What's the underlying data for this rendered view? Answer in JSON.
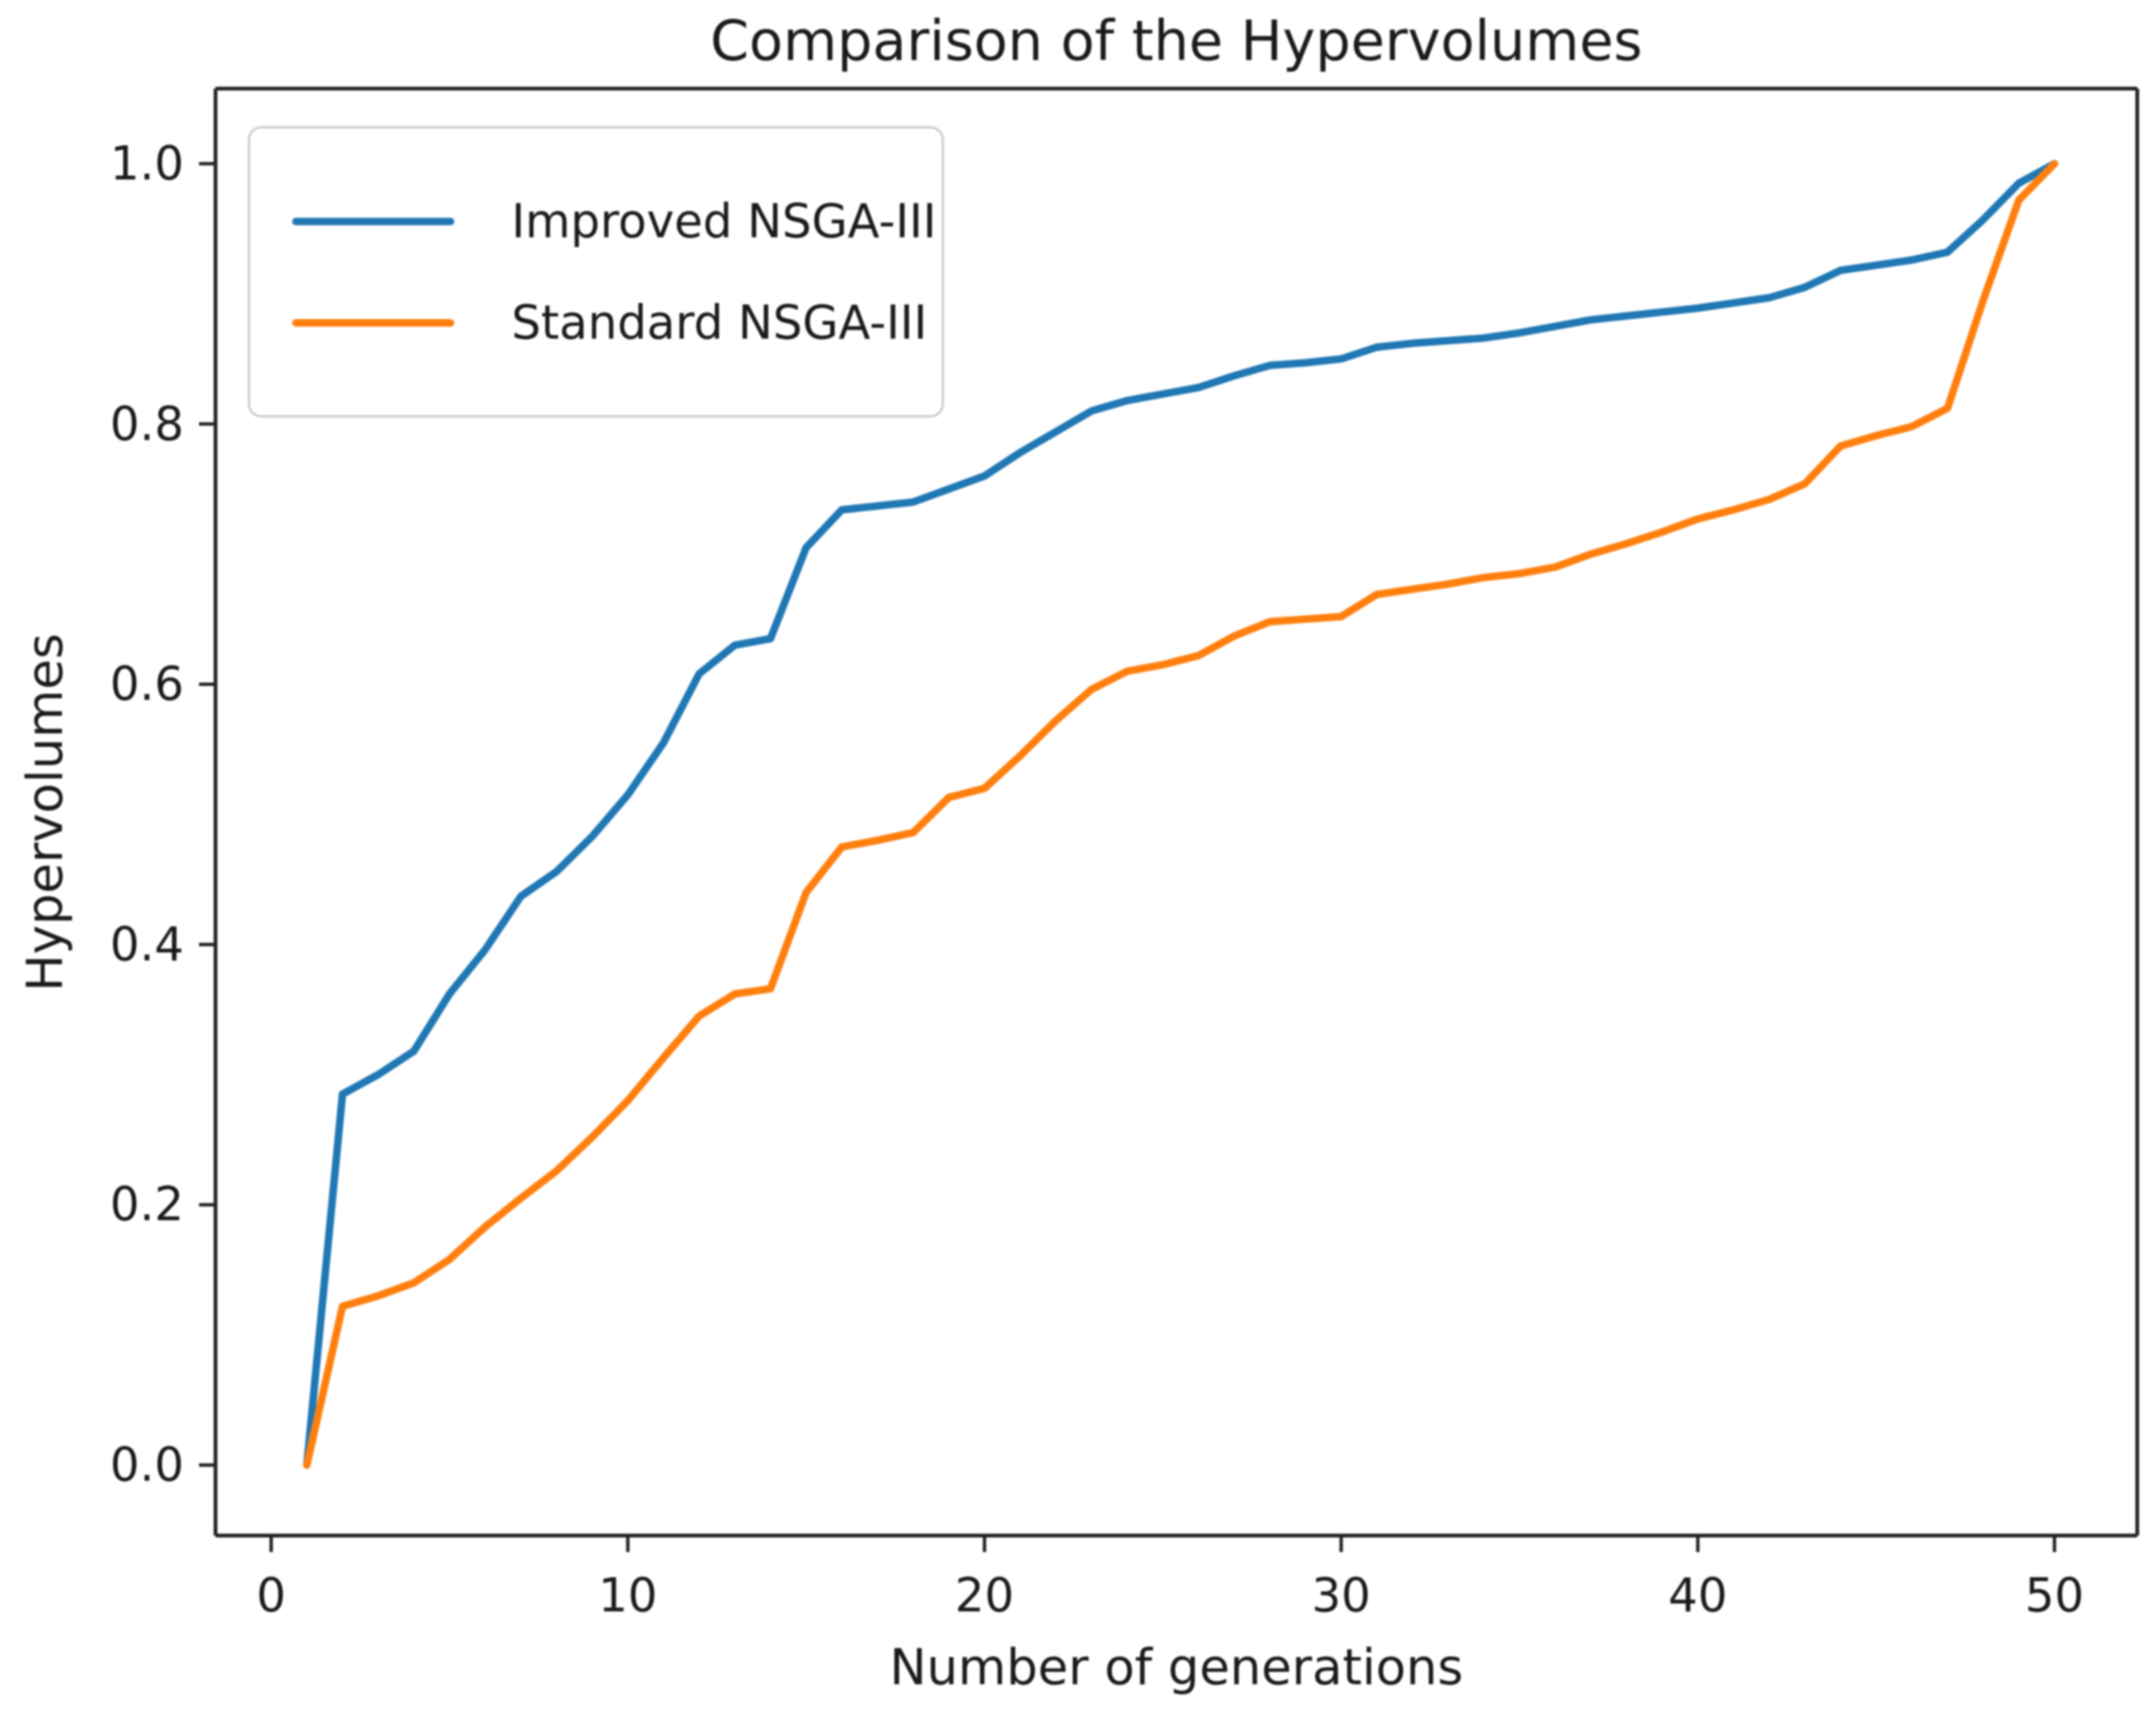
{
  "chart_data": {
    "type": "line",
    "title": "Comparison of the Hypervolumes",
    "xlabel": "Number of generations",
    "ylabel": "Hypervolumes",
    "xlim": [
      -1.56,
      52.32
    ],
    "ylim": [
      -0.0542,
      1.0577
    ],
    "x_ticks": [
      0,
      10,
      20,
      30,
      40,
      50
    ],
    "x_tick_labels": [
      "0",
      "10",
      "20",
      "30",
      "40",
      "50"
    ],
    "y_ticks": [
      0.0,
      0.2,
      0.4,
      0.6,
      0.8,
      1.0
    ],
    "y_tick_labels": [
      "0.0",
      "0.2",
      "0.4",
      "0.6",
      "0.8",
      "1.0"
    ],
    "grid": false,
    "legend_position": "upper left",
    "x": [
      1,
      2,
      3,
      4,
      5,
      6,
      7,
      8,
      9,
      10,
      11,
      12,
      13,
      14,
      15,
      16,
      17,
      18,
      19,
      20,
      21,
      22,
      23,
      24,
      25,
      26,
      27,
      28,
      29,
      30,
      31,
      32,
      33,
      34,
      35,
      36,
      37,
      38,
      39,
      40,
      41,
      42,
      43,
      44,
      45,
      46,
      47,
      48,
      49,
      50
    ],
    "series": [
      {
        "name": "Improved NSGA-III",
        "color": "#1f77b4",
        "values": [
          0.0,
          0.285,
          0.3,
          0.318,
          0.362,
          0.396,
          0.437,
          0.456,
          0.483,
          0.515,
          0.555,
          0.608,
          0.63,
          0.635,
          0.705,
          0.734,
          0.737,
          0.74,
          0.75,
          0.76,
          0.778,
          0.794,
          0.81,
          0.818,
          0.823,
          0.828,
          0.837,
          0.845,
          0.847,
          0.85,
          0.859,
          0.862,
          0.864,
          0.866,
          0.87,
          0.875,
          0.88,
          0.883,
          0.886,
          0.889,
          0.893,
          0.897,
          0.905,
          0.918,
          0.922,
          0.926,
          0.932,
          0.957,
          0.985,
          1.0
        ]
      },
      {
        "name": "Standard NSGA-III",
        "color": "#ff7f0e",
        "values": [
          0.0,
          0.122,
          0.13,
          0.14,
          0.158,
          0.183,
          0.205,
          0.226,
          0.252,
          0.28,
          0.313,
          0.345,
          0.362,
          0.366,
          0.44,
          0.475,
          0.48,
          0.486,
          0.513,
          0.52,
          0.545,
          0.572,
          0.596,
          0.61,
          0.615,
          0.622,
          0.637,
          0.648,
          0.65,
          0.652,
          0.669,
          0.673,
          0.677,
          0.682,
          0.685,
          0.69,
          0.7,
          0.708,
          0.717,
          0.727,
          0.734,
          0.742,
          0.754,
          0.783,
          0.791,
          0.798,
          0.812,
          0.895,
          0.972,
          1.0
        ]
      }
    ]
  },
  "style": {
    "axis_color": "#222222",
    "text_color": "#1a1a1a",
    "line_width": 10,
    "spine_width": 5,
    "tick_width": 4.5,
    "tick_length": 22
  }
}
